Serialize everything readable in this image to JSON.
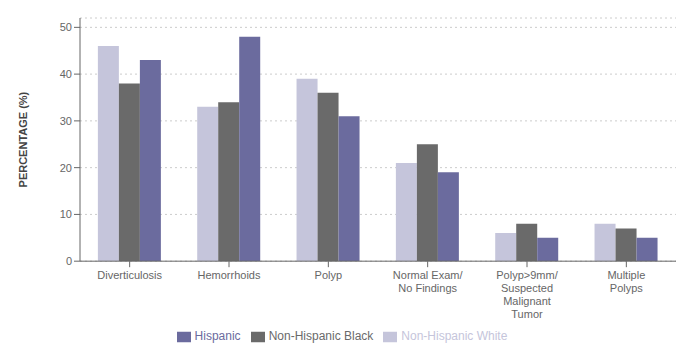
{
  "chart_data": {
    "type": "bar",
    "categories": [
      "Diverticulosis",
      "Hemorrhoids",
      "Polyp",
      "Normal Exam/\nNo Findings",
      "Polyp>9mm/\nSuspected\nMalignant\nTumor",
      "Multiple\nPolyps"
    ],
    "series": [
      {
        "name": "Non-Hispanic White",
        "color": "#c5c5db",
        "values": [
          46,
          33,
          39,
          21,
          6,
          8
        ]
      },
      {
        "name": "Non-Hispanic Black",
        "color": "#6a6a6a",
        "values": [
          38,
          34,
          36,
          25,
          8,
          7
        ]
      },
      {
        "name": "Hispanic",
        "color": "#6b6b9e",
        "values": [
          43,
          48,
          31,
          19,
          5,
          5
        ]
      }
    ],
    "ylabel": "PERCENTAGE (%)",
    "ylim": [
      0,
      52
    ],
    "yticks": [
      0,
      10,
      20,
      30,
      40,
      50
    ],
    "grid": true,
    "legend": "bottom"
  }
}
